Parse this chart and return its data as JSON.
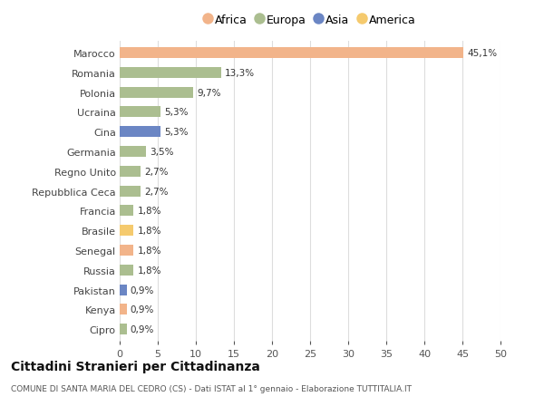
{
  "countries": [
    "Marocco",
    "Romania",
    "Polonia",
    "Ucraina",
    "Cina",
    "Germania",
    "Regno Unito",
    "Repubblica Ceca",
    "Francia",
    "Brasile",
    "Senegal",
    "Russia",
    "Pakistan",
    "Kenya",
    "Cipro"
  ],
  "values": [
    45.1,
    13.3,
    9.7,
    5.3,
    5.3,
    3.5,
    2.7,
    2.7,
    1.8,
    1.8,
    1.8,
    1.8,
    0.9,
    0.9,
    0.9
  ],
  "labels": [
    "45,1%",
    "13,3%",
    "9,7%",
    "5,3%",
    "5,3%",
    "3,5%",
    "2,7%",
    "2,7%",
    "1,8%",
    "1,8%",
    "1,8%",
    "1,8%",
    "0,9%",
    "0,9%",
    "0,9%"
  ],
  "continents": [
    "Africa",
    "Europa",
    "Europa",
    "Europa",
    "Asia",
    "Europa",
    "Europa",
    "Europa",
    "Europa",
    "America",
    "Africa",
    "Europa",
    "Asia",
    "Africa",
    "Europa"
  ],
  "colors": {
    "Africa": "#F2B48A",
    "Europa": "#ABBE90",
    "Asia": "#6B86C4",
    "America": "#F5CA6E"
  },
  "legend_order": [
    "Africa",
    "Europa",
    "Asia",
    "America"
  ],
  "xlim": [
    0,
    50
  ],
  "xticks": [
    0,
    5,
    10,
    15,
    20,
    25,
    30,
    35,
    40,
    45,
    50
  ],
  "title": "Cittadini Stranieri per Cittadinanza",
  "subtitle": "COMUNE DI SANTA MARIA DEL CEDRO (CS) - Dati ISTAT al 1° gennaio - Elaborazione TUTTITALIA.IT",
  "bg_color": "#FFFFFF",
  "grid_color": "#DDDDDD",
  "bar_height": 0.55
}
